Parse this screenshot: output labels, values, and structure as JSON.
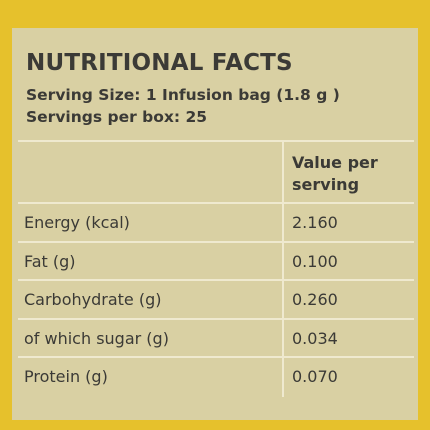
{
  "header": {
    "title": "NUTRITIONAL FACTS",
    "serving_size": "Serving Size: 1 Infusion bag (1.8 g )",
    "servings": "Servings per box: 25"
  },
  "table": {
    "columns": [
      "",
      "Value per serving"
    ],
    "rows": [
      [
        "Energy (kcal)",
        "2.160"
      ],
      [
        "Fat (g)",
        "0.100"
      ],
      [
        "Carbohydrate (g)",
        "0.260"
      ],
      [
        "of which sugar (g)",
        "0.034"
      ],
      [
        "Protein (g)",
        "0.070"
      ]
    ]
  }
}
